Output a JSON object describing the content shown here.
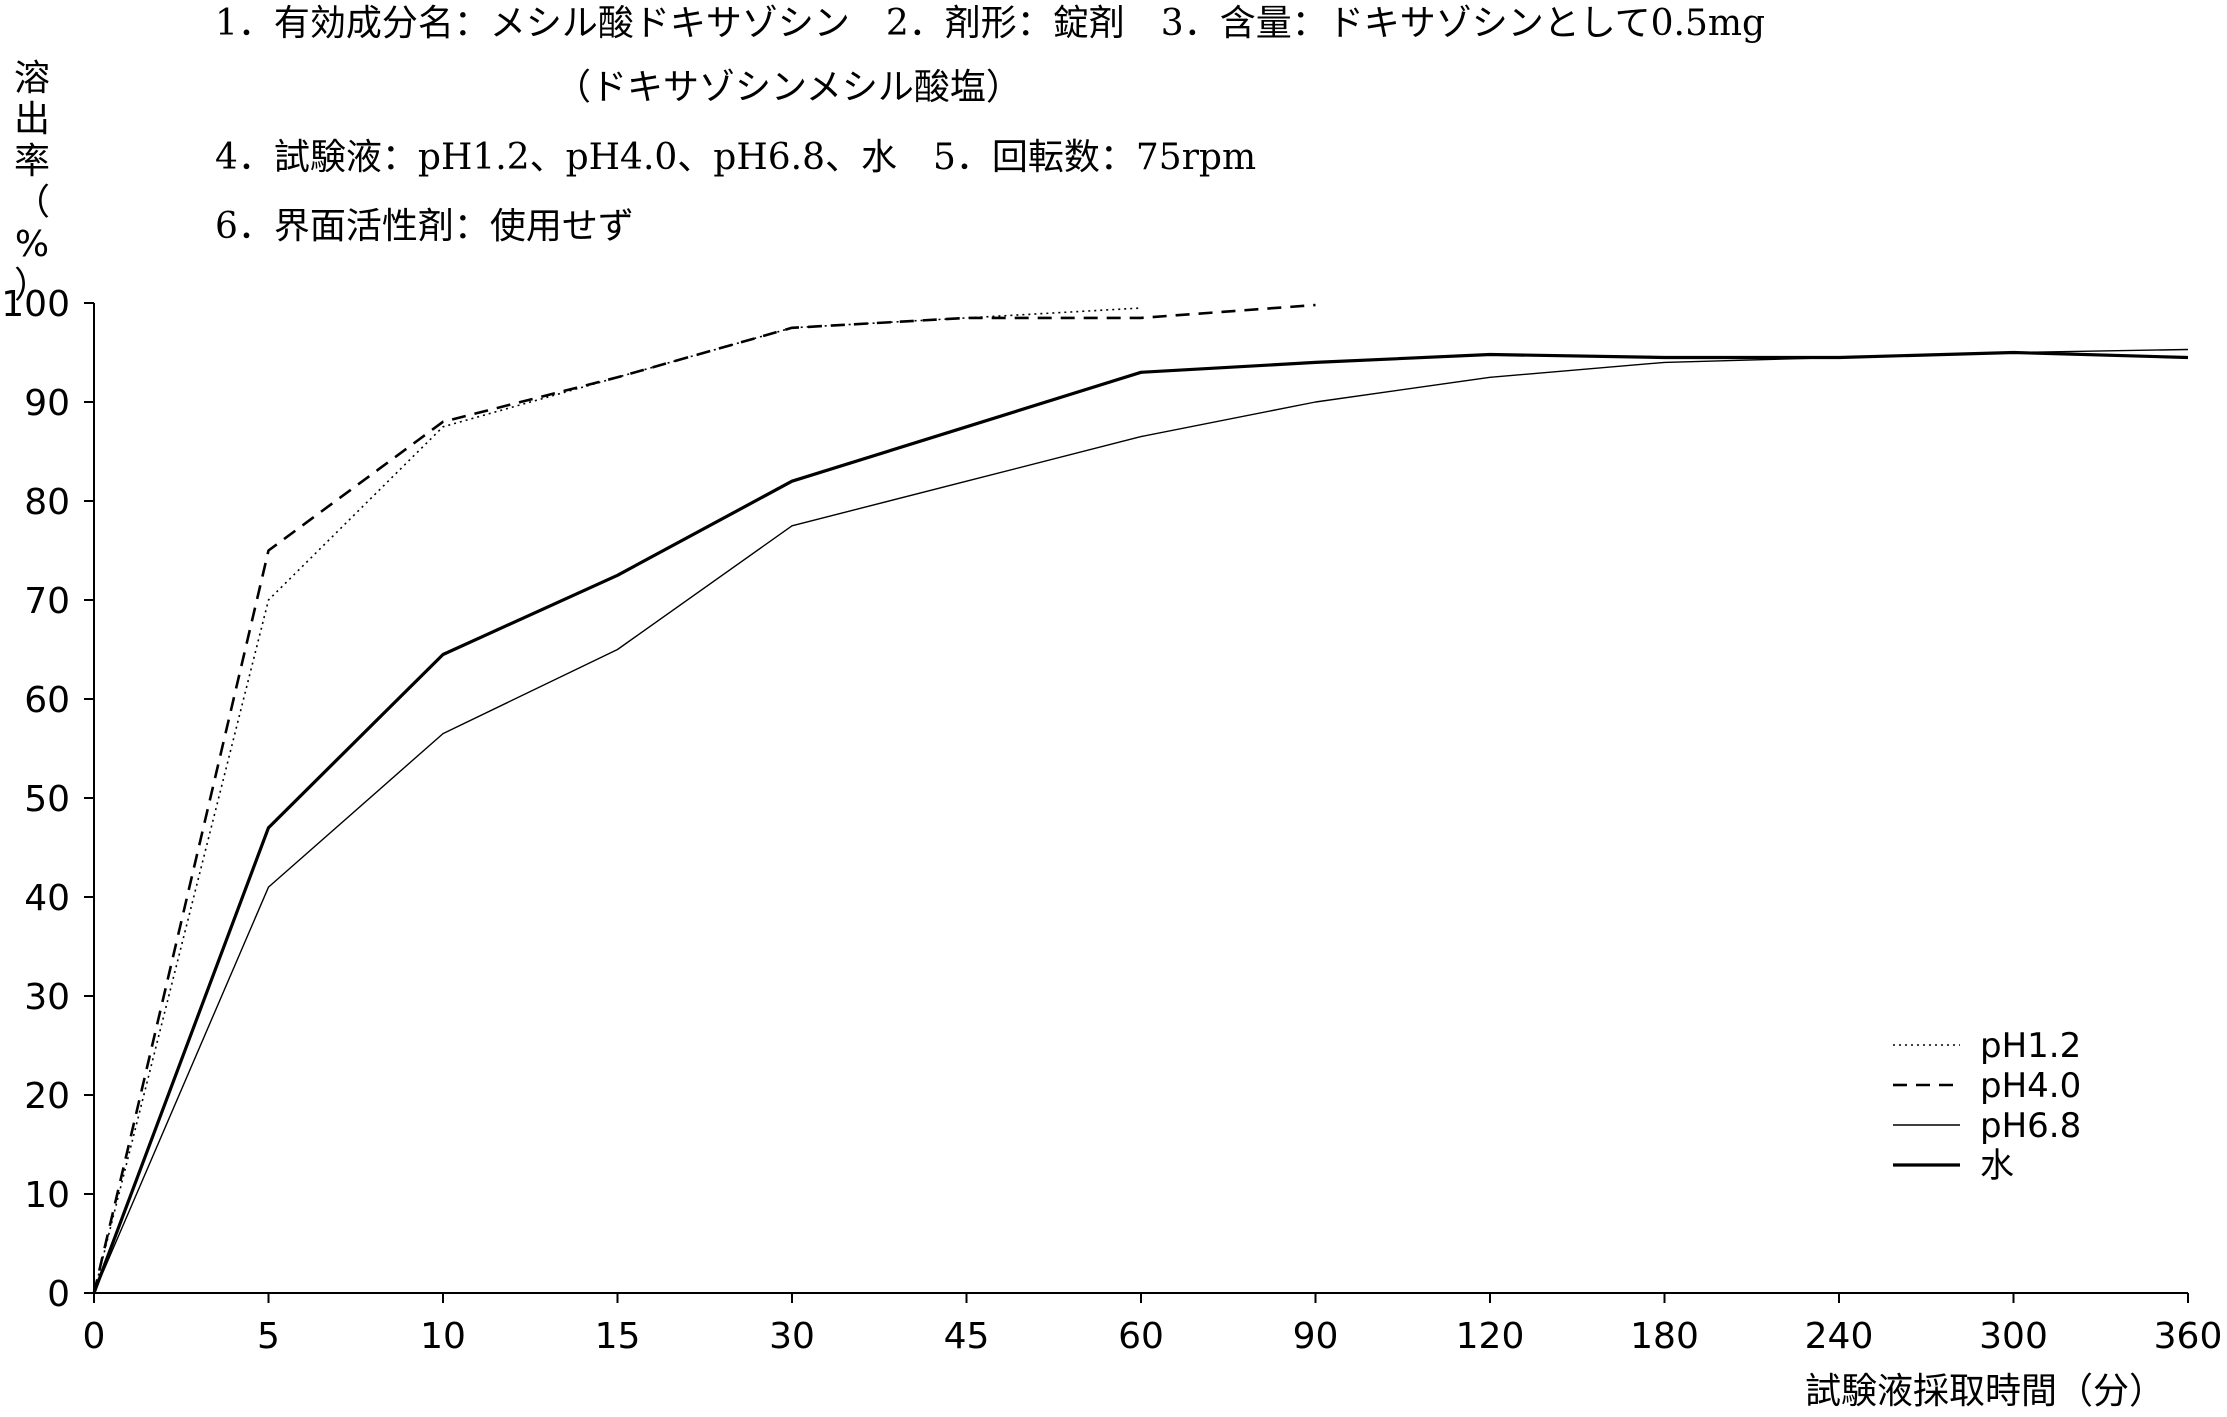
{
  "conditions": {
    "line1": "1．有効成分名：メシル酸ドキサゾシン　2．剤形：錠剤　3．含量：ドキサゾシンとして0.5mg",
    "line2": "（ドキサゾシンメシル酸塩）",
    "line3": "4．試験液：pH1.2、pH4.0、pH6.8、水　5．回転数：75rpm",
    "line4": "6．界面活性剤：使用せず"
  },
  "chart_data": {
    "type": "line",
    "ylabel": "溶出率（%）",
    "xlabel": "試験液採取時間（分）",
    "ylim": [
      0,
      100
    ],
    "yticks": [
      "0",
      "10",
      "20",
      "30",
      "40",
      "50",
      "60",
      "70",
      "80",
      "90",
      "100"
    ],
    "categories": [
      "0",
      "5",
      "10",
      "15",
      "30",
      "45",
      "60",
      "90",
      "120",
      "180",
      "240",
      "300",
      "360"
    ],
    "legend_position": "bottom-right",
    "grid": false,
    "series": [
      {
        "name": "pH1.2",
        "style": "dotted",
        "values": [
          0,
          70,
          87.5,
          null,
          97.5,
          null,
          99.5,
          null,
          null,
          null,
          null,
          null,
          null
        ]
      },
      {
        "name": "pH4.0",
        "style": "dashed",
        "values": [
          0,
          75,
          88,
          92.5,
          97.5,
          98.5,
          98.5,
          99.8,
          null,
          null,
          null,
          null,
          null
        ]
      },
      {
        "name": "pH6.8",
        "style": "thin",
        "values": [
          0,
          41,
          56.5,
          65,
          77.5,
          82,
          86.5,
          90,
          92.5,
          94,
          94.5,
          95,
          95.3
        ]
      },
      {
        "name": "水",
        "style": "thick",
        "values": [
          0,
          47,
          64.5,
          72.5,
          82,
          87.5,
          93,
          94,
          94.8,
          94.5,
          94.5,
          95,
          94.5
        ]
      }
    ]
  }
}
